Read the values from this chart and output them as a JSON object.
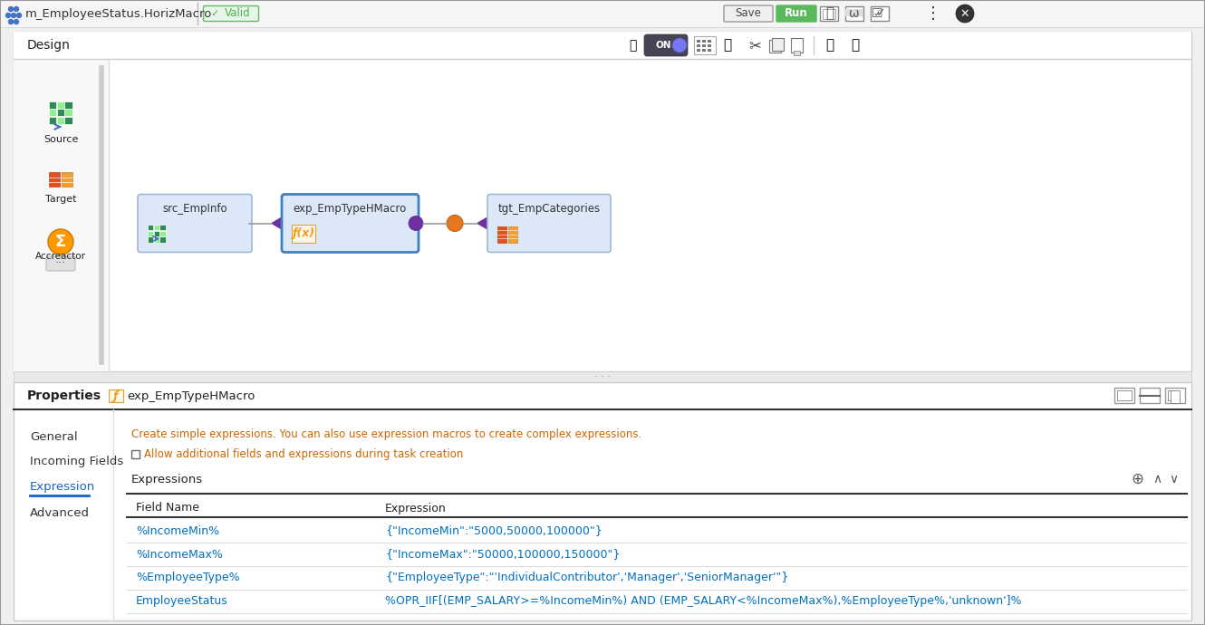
{
  "title_bar_text": "m_EmployeeStatus.HorizMacro",
  "valid_text": "Valid",
  "tab_title": "exp_EmpTypeHMacro",
  "design_label": "Design",
  "properties_label": "Properties",
  "general_label": "General",
  "incoming_fields_label": "Incoming Fields",
  "expression_label": "Expression",
  "advanced_label": "Advanced",
  "description_text": "Create simple expressions. You can also use expression macros to create complex expressions.",
  "checkbox_text": "Allow additional fields and expressions during task creation",
  "expressions_label": "Expressions",
  "table_header_field": "Field Name",
  "table_header_expression": "Expression",
  "rows": [
    {
      "field": "%IncomeMin%",
      "expression": "{\"IncomeMin\":\"5000,50000,100000\"}"
    },
    {
      "field": "%IncomeMax%",
      "expression": "{\"IncomeMax\":\"50000,100000,150000\"}"
    },
    {
      "field": "%EmployeeType%",
      "expression": "{\"EmployeeType\":\"'IndividualContributor','Manager','SeniorManager'\"}"
    },
    {
      "field": "EmployeeStatus",
      "expression": "%OPR_IIF[(EMP_SALARY>=%IncomeMin%) AND (EMP_SALARY<%IncomeMax%),%EmployeeType%,'unknown']%"
    }
  ],
  "source_node_label": "src_EmpInfo",
  "transform_node_label": "exp_EmpTypeHMacro",
  "target_node_label": "tgt_EmpCategories",
  "bg_color": "#f0f0f0",
  "top_bar_bg": "#f5f5f5",
  "panel_bg": "#ffffff",
  "node_bg": "#dce8f8",
  "node_border_src": "#a0b8d8",
  "node_border_exp": "#4080c0",
  "node_border_tgt": "#a0b8d8",
  "title_text_color": "#333333",
  "blue_link_color": "#0070c0",
  "orange_text_color": "#cc6600",
  "dark_text_color": "#222222",
  "green_run_color": "#5cb85c",
  "arrow_color": "#7030a0",
  "connector_dot_color": "#7030a0",
  "orange_dot_color": "#e87820",
  "divider_bg": "#e0e0e0",
  "sidebar_bg": "#f8f8f8",
  "row_sep_color": "#dddddd",
  "heavy_sep_color": "#333333",
  "light_border": "#cccccc",
  "props_sep_color": "#888888",
  "blue_underline_color": "#1565c0"
}
